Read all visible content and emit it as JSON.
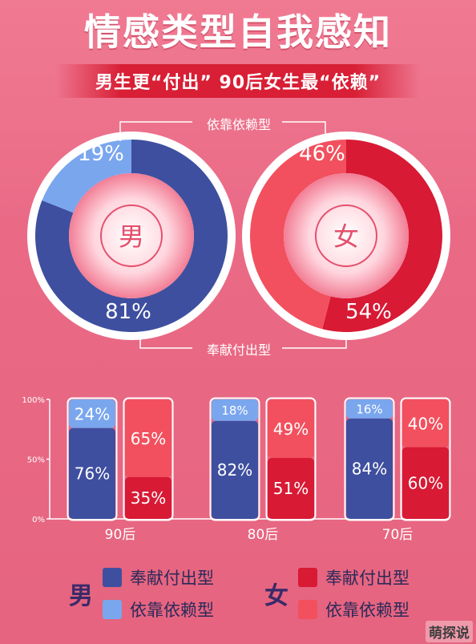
{
  "title": "情感类型自我感知",
  "subtitle": "男生更“付出” 90后女生最“依赖”",
  "donut_label_top": "依靠依赖型",
  "donut_label_bottom": "奉献付出型",
  "colors": {
    "male_giving": "#3f4f9f",
    "male_dependent": "#7aa6ee",
    "female_giving": "#d81a35",
    "female_dependent": "#f2505e",
    "ring": "#ffffff"
  },
  "chart_data": [
    {
      "type": "pie",
      "center_label": "男",
      "series": [
        {
          "name": "奉献付出型",
          "value": 81,
          "label": "81%"
        },
        {
          "name": "依靠依赖型",
          "value": 19,
          "label": "19%"
        }
      ]
    },
    {
      "type": "pie",
      "center_label": "女",
      "series": [
        {
          "name": "奉献付出型",
          "value": 54,
          "label": "54%"
        },
        {
          "name": "依靠依赖型",
          "value": 46,
          "label": "46%"
        }
      ]
    },
    {
      "type": "bar",
      "stacked": true,
      "categories": [
        "90后",
        "80后",
        "70后"
      ],
      "ylim": [
        0,
        100
      ],
      "yticks": [
        {
          "value": 0,
          "label": "0%"
        },
        {
          "value": 50,
          "label": "50%"
        },
        {
          "value": 100,
          "label": "100%"
        }
      ],
      "groups": {
        "男": [
          {
            "giving": 76,
            "dependent": 24,
            "giving_label": "76%",
            "dependent_label": "24%"
          },
          {
            "giving": 82,
            "dependent": 18,
            "giving_label": "82%",
            "dependent_label": "18%"
          },
          {
            "giving": 84,
            "dependent": 16,
            "giving_label": "84%",
            "dependent_label": "16%"
          }
        ],
        "女": [
          {
            "giving": 35,
            "dependent": 65,
            "giving_label": "35%",
            "dependent_label": "65%"
          },
          {
            "giving": 51,
            "dependent": 49,
            "giving_label": "51%",
            "dependent_label": "49%"
          },
          {
            "giving": 60,
            "dependent": 40,
            "giving_label": "60%",
            "dependent_label": "40%"
          }
        ]
      }
    }
  ],
  "legend": {
    "male": {
      "gender": "男",
      "giving": "奉献付出型",
      "dependent": "依靠依赖型"
    },
    "female": {
      "gender": "女",
      "giving": "奉献付出型",
      "dependent": "依靠依赖型"
    }
  },
  "watermark": "萌探说"
}
